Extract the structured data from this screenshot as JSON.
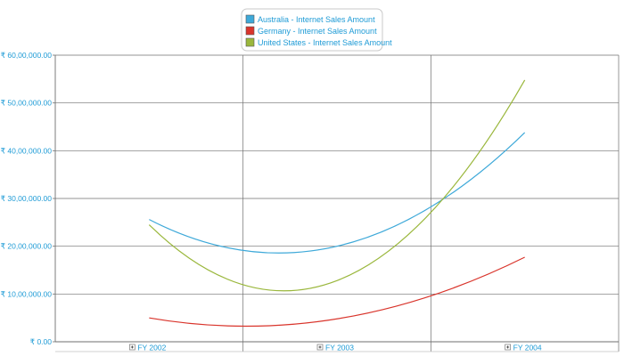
{
  "chart_data": {
    "type": "line",
    "title": "",
    "xlabel": "",
    "ylabel": "",
    "categories": [
      "FY 2002",
      "FY 2003",
      "FY 2004"
    ],
    "ylim": [
      0,
      6000000
    ],
    "yticks": [
      0,
      1000000,
      2000000,
      3000000,
      4000000,
      5000000,
      6000000
    ],
    "ytick_labels": [
      "₹ 0.00",
      "₹ 10,00,000.00",
      "₹ 20,00,000.00",
      "₹ 30,00,000.00",
      "₹ 40,00,000.00",
      "₹ 50,00,000.00",
      "₹ 60,00,000.00"
    ],
    "grid": true,
    "legend_position": "top-center",
    "expand_icon": "plus-box-icon",
    "series": [
      {
        "name": "Australia - Internet Sales Amount",
        "color": "#3ea9d9",
        "values": [
          2560000,
          2000000,
          4380000
        ]
      },
      {
        "name": "Germany - Internet Sales Amount",
        "color": "#d9342b",
        "values": [
          500000,
          480000,
          1770000
        ]
      },
      {
        "name": "United States - Internet Sales Amount",
        "color": "#9ab73c",
        "values": [
          2450000,
          1280000,
          5480000
        ]
      }
    ],
    "colors": {
      "axis_text": "#1e9bd6",
      "grid": "#6f6f6f",
      "legend_border": "#c8c8c8"
    }
  }
}
